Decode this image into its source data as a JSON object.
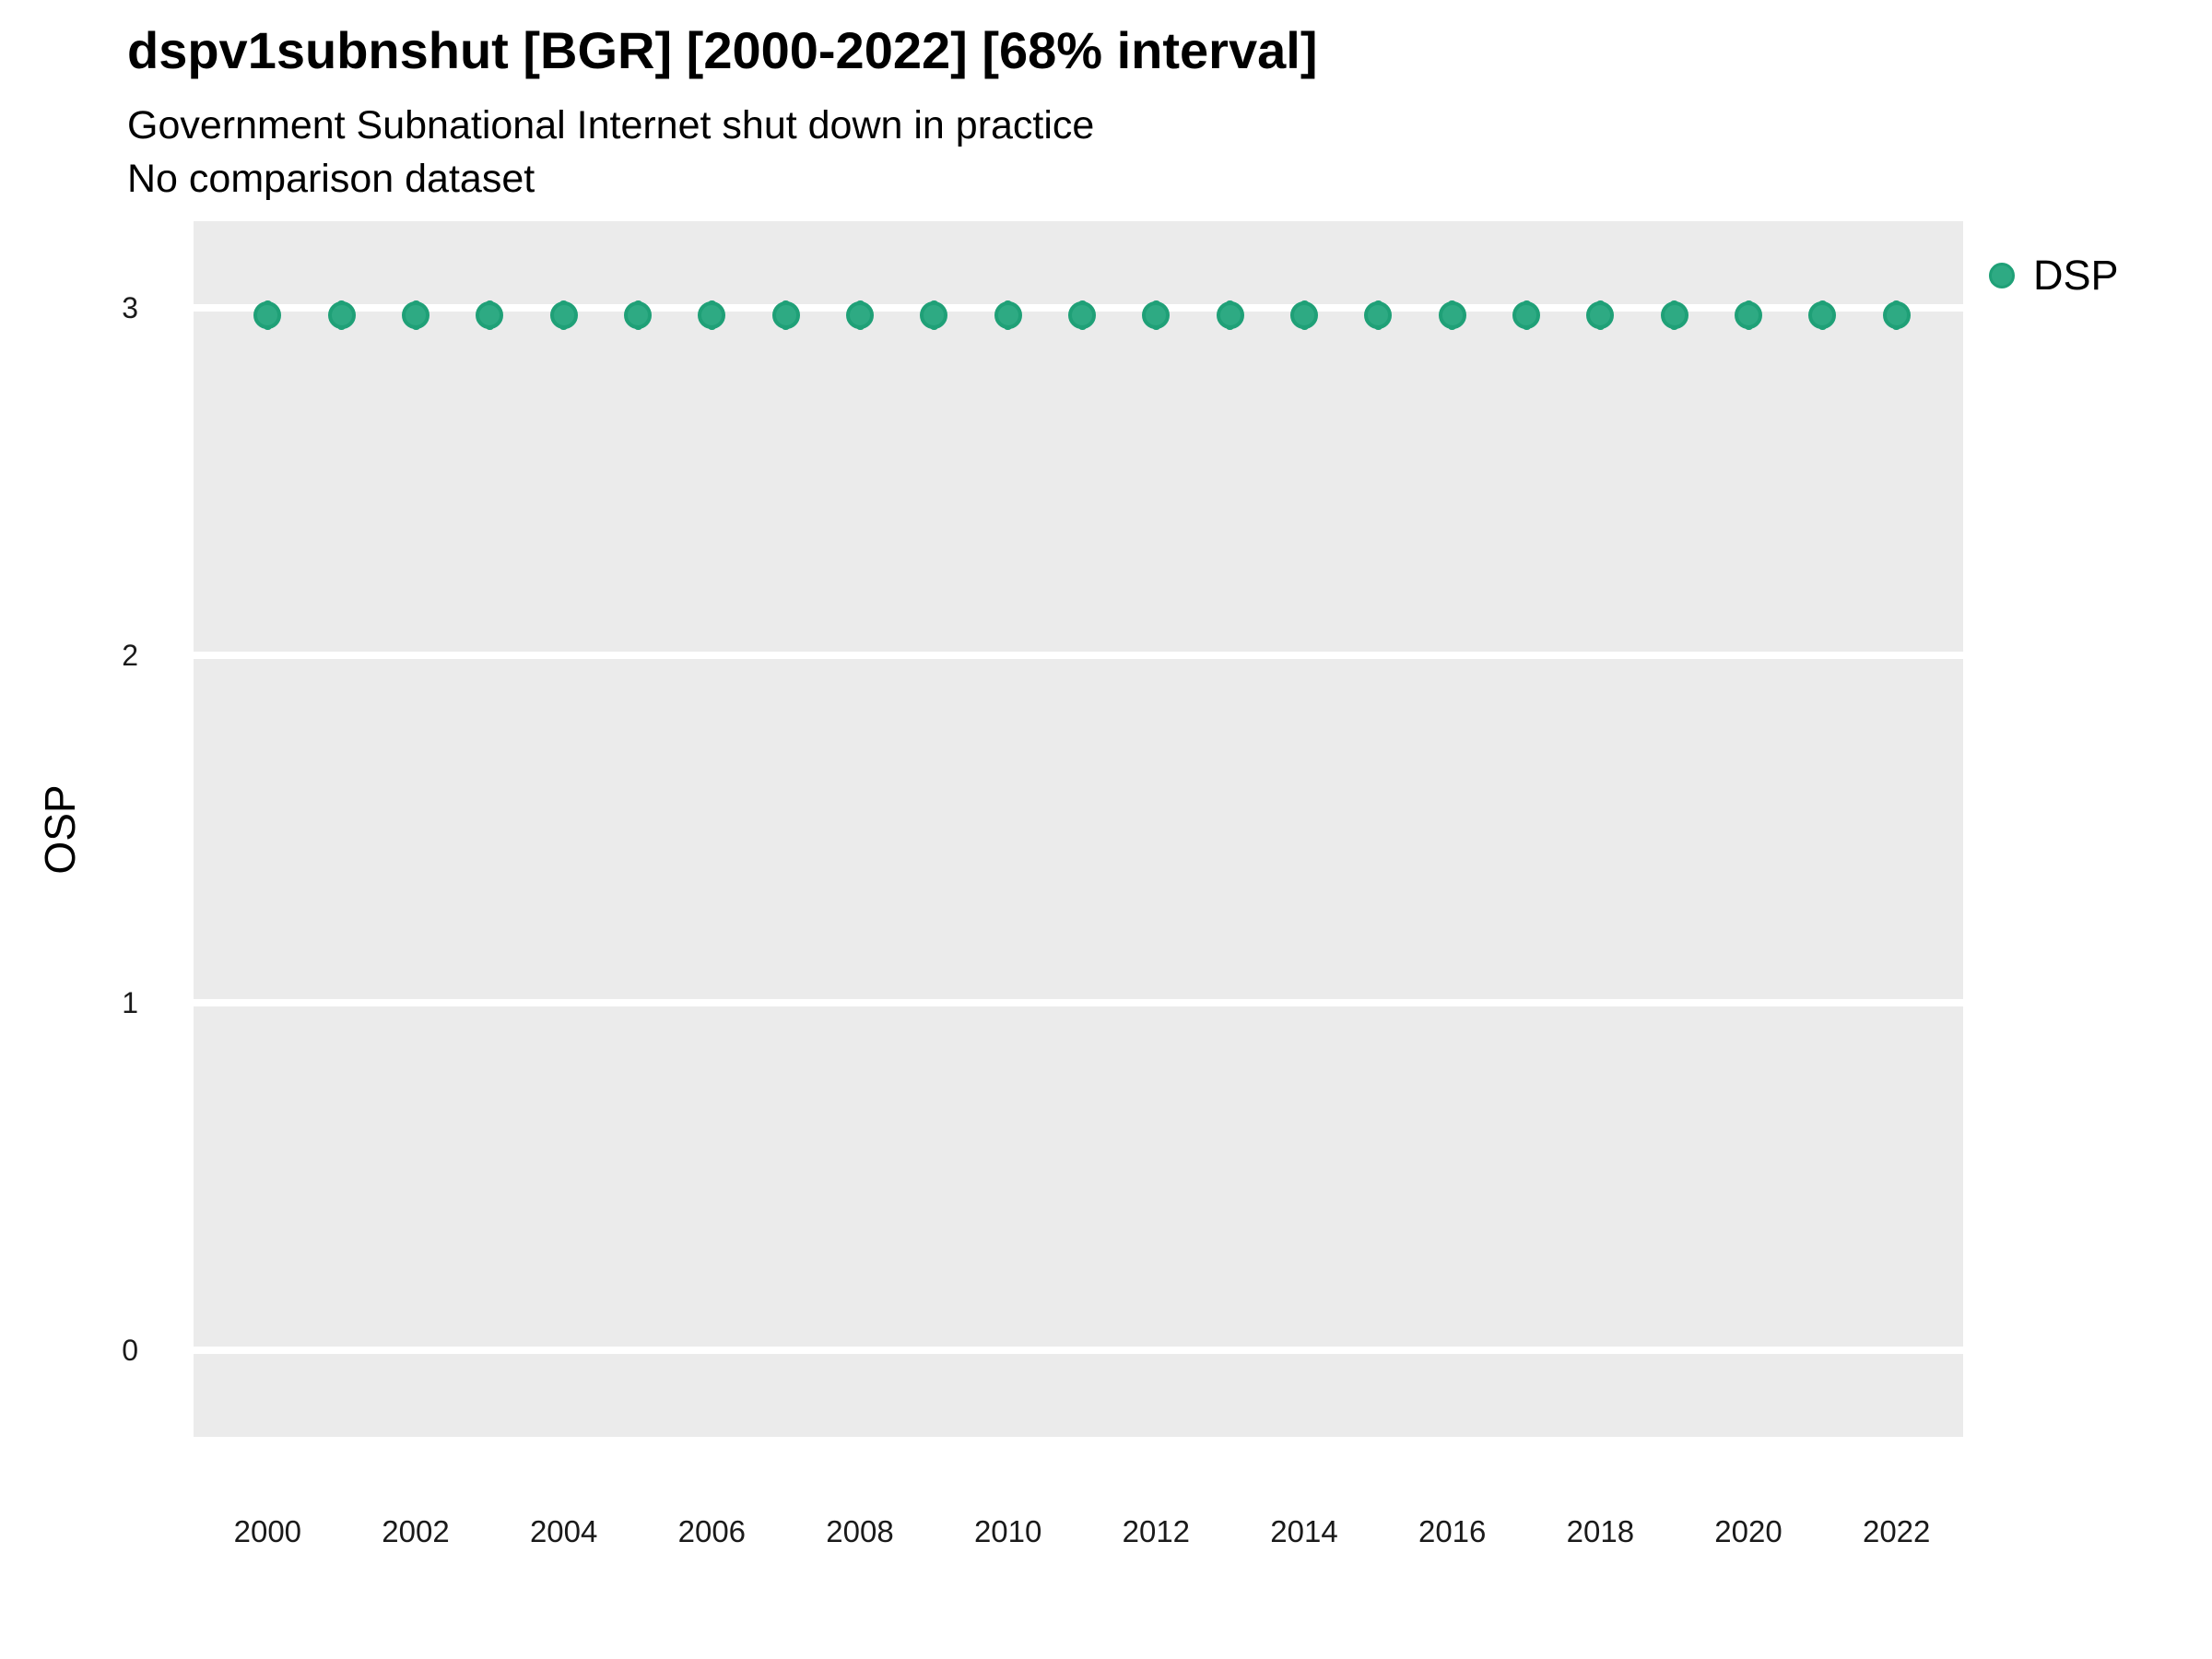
{
  "header": {
    "title": "dspv1subnshut [BGR] [2000-2022] [68% interval]",
    "subtitle": "Government Subnational Internet shut down in practice",
    "note": "No comparison dataset"
  },
  "legend": {
    "position": "right-top",
    "items": [
      {
        "label": "DSP",
        "color": "#2eaa83"
      }
    ]
  },
  "colors": {
    "page_bg": "#ffffff",
    "panel_bg": "#ebebeb",
    "gridline": "#ffffff",
    "point_fill": "#2eaa83",
    "point_stroke": "#1fa077",
    "tick_text": "#1a1a1a"
  },
  "chart_data": {
    "type": "scatter",
    "title": "dspv1subnshut [BGR] [2000-2022] [68% interval]",
    "subtitle": "Government Subnational Internet shut down in practice",
    "note": "No comparison dataset",
    "xlabel": "",
    "ylabel": "OSP",
    "x": [
      2000,
      2001,
      2002,
      2003,
      2004,
      2005,
      2006,
      2007,
      2008,
      2009,
      2010,
      2011,
      2012,
      2013,
      2014,
      2015,
      2016,
      2017,
      2018,
      2019,
      2020,
      2021,
      2022
    ],
    "series": [
      {
        "name": "DSP",
        "values": [
          2.98,
          2.98,
          2.98,
          2.98,
          2.98,
          2.98,
          2.98,
          2.98,
          2.98,
          2.98,
          2.98,
          2.98,
          2.98,
          2.98,
          2.98,
          2.98,
          2.98,
          2.98,
          2.98,
          2.98,
          2.98,
          2.98,
          2.98
        ]
      }
    ],
    "xlim": [
      1999.0,
      2022.9
    ],
    "ylim": [
      -0.25,
      3.25
    ],
    "x_ticks": [
      2000,
      2002,
      2004,
      2006,
      2008,
      2010,
      2012,
      2014,
      2016,
      2018,
      2020,
      2022
    ],
    "y_ticks": [
      0,
      1,
      2,
      3
    ],
    "grid": "horizontal-major-white",
    "legend_position": "right"
  }
}
